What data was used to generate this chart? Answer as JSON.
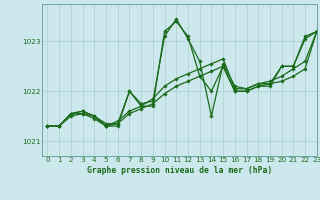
{
  "title": "Graphe pression niveau de la mer (hPa)",
  "bg_color": "#cce8ec",
  "line_color": "#1a6b1a",
  "grid_color": "#aacccc",
  "xlim": [
    -0.5,
    23
  ],
  "ylim": [
    1020.7,
    1023.75
  ],
  "yticks": [
    1021,
    1022,
    1023
  ],
  "xticks": [
    0,
    1,
    2,
    3,
    4,
    5,
    6,
    7,
    8,
    9,
    10,
    11,
    12,
    13,
    14,
    15,
    16,
    17,
    18,
    19,
    20,
    21,
    22,
    23
  ],
  "lines": [
    {
      "x": [
        0,
        1,
        2,
        3,
        4,
        5,
        6,
        7,
        8,
        9,
        10,
        11,
        12,
        13,
        14,
        15,
        16,
        17,
        18,
        19,
        20,
        21,
        22,
        23
      ],
      "y": [
        1021.3,
        1021.3,
        1021.55,
        1021.6,
        1021.5,
        1021.35,
        1021.35,
        1022.0,
        1021.75,
        1021.8,
        1023.1,
        1023.45,
        1023.05,
        1022.6,
        1021.5,
        1022.55,
        1022.1,
        1022.05,
        1022.15,
        1022.15,
        1022.5,
        1022.5,
        1023.05,
        1023.2
      ]
    },
    {
      "x": [
        0,
        1,
        2,
        3,
        4,
        5,
        6,
        7,
        8,
        9,
        10,
        11,
        12,
        13,
        14,
        15,
        16,
        17,
        18,
        19,
        20,
        21,
        22,
        23
      ],
      "y": [
        1021.3,
        1021.3,
        1021.55,
        1021.55,
        1021.5,
        1021.3,
        1021.3,
        1022.0,
        1021.7,
        1021.7,
        1023.2,
        1023.4,
        1023.1,
        1022.3,
        1022.0,
        1022.5,
        1022.0,
        1022.0,
        1022.1,
        1022.1,
        1022.5,
        1022.5,
        1023.1,
        1023.2
      ]
    },
    {
      "x": [
        0,
        1,
        2,
        3,
        4,
        5,
        6,
        7,
        8,
        9,
        10,
        11,
        12,
        13,
        14,
        15,
        16,
        17,
        18,
        19,
        20,
        21,
        22,
        23
      ],
      "y": [
        1021.3,
        1021.3,
        1021.5,
        1021.55,
        1021.45,
        1021.3,
        1021.35,
        1021.55,
        1021.65,
        1021.75,
        1021.95,
        1022.1,
        1022.2,
        1022.3,
        1022.4,
        1022.5,
        1022.0,
        1022.0,
        1022.1,
        1022.15,
        1022.2,
        1022.3,
        1022.45,
        1023.2
      ]
    },
    {
      "x": [
        0,
        1,
        2,
        3,
        4,
        5,
        6,
        7,
        8,
        9,
        10,
        11,
        12,
        13,
        14,
        15,
        16,
        17,
        18,
        19,
        20,
        21,
        22,
        23
      ],
      "y": [
        1021.3,
        1021.3,
        1021.55,
        1021.6,
        1021.5,
        1021.3,
        1021.4,
        1021.6,
        1021.7,
        1021.85,
        1022.1,
        1022.25,
        1022.35,
        1022.45,
        1022.55,
        1022.65,
        1022.05,
        1022.05,
        1022.15,
        1022.2,
        1022.3,
        1022.45,
        1022.6,
        1023.2
      ]
    }
  ]
}
